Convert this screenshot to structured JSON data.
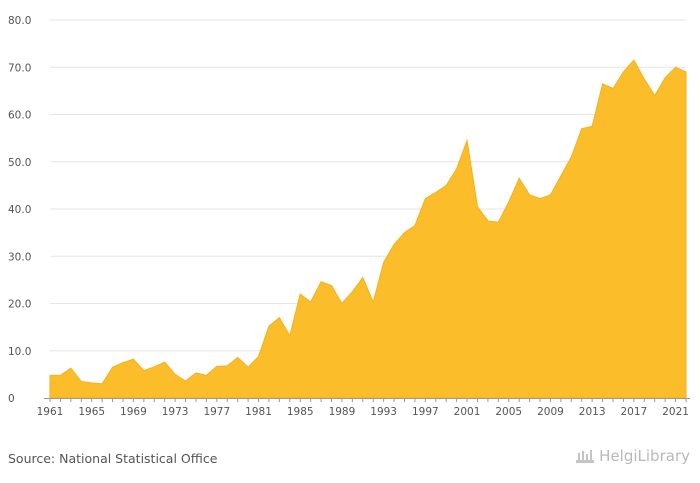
{
  "source_text": "Source: National Statistical Office",
  "brand": {
    "name": "HelgiLibrary",
    "icon": "library-building-icon"
  },
  "colors": {
    "area": "#FBBD2A",
    "area_stroke": "#F3B21C",
    "grid": "#e6e6e6",
    "axis": "#999999",
    "text": "#555555"
  },
  "chart_data": {
    "type": "area",
    "title": "",
    "xlabel": "",
    "ylabel": "",
    "ylim": [
      0,
      80
    ],
    "yticks": [
      "0",
      "10.0",
      "20.0",
      "30.0",
      "40.0",
      "50.0",
      "60.0",
      "70.0",
      "80.0"
    ],
    "xticks": [
      "1961",
      "1965",
      "1969",
      "1973",
      "1977",
      "1981",
      "1985",
      "1989",
      "1993",
      "1997",
      "2001",
      "2005",
      "2009",
      "2013",
      "2017",
      "2021"
    ],
    "grid": true,
    "x": [
      1961,
      1962,
      1963,
      1964,
      1965,
      1966,
      1967,
      1968,
      1969,
      1970,
      1971,
      1972,
      1973,
      1974,
      1975,
      1976,
      1977,
      1978,
      1979,
      1980,
      1981,
      1982,
      1983,
      1984,
      1985,
      1986,
      1987,
      1988,
      1989,
      1990,
      1991,
      1992,
      1993,
      1994,
      1995,
      1996,
      1997,
      1998,
      1999,
      2000,
      2001,
      2002,
      2003,
      2004,
      2005,
      2006,
      2007,
      2008,
      2009,
      2010,
      2011,
      2012,
      2013,
      2014,
      2015,
      2016,
      2017,
      2018,
      2019,
      2020,
      2021,
      2022
    ],
    "values": [
      4.8,
      4.8,
      6.3,
      3.5,
      3.2,
      3.0,
      6.5,
      7.5,
      8.2,
      5.8,
      6.6,
      7.6,
      5.0,
      3.6,
      5.3,
      4.8,
      6.7,
      6.8,
      8.6,
      6.5,
      8.8,
      15.2,
      17.0,
      13.2,
      22.0,
      20.3,
      24.6,
      23.8,
      20.0,
      22.5,
      25.5,
      20.3,
      28.7,
      32.5,
      35.0,
      36.5,
      42.2,
      43.5,
      45.0,
      48.5,
      54.5,
      40.5,
      37.5,
      37.2,
      41.5,
      46.5,
      43.0,
      42.2,
      43.0,
      47.0,
      51.0,
      57.0,
      57.5,
      66.5,
      65.5,
      69.0,
      71.5,
      67.5,
      64.0,
      67.8,
      70.0,
      69.0
    ]
  }
}
